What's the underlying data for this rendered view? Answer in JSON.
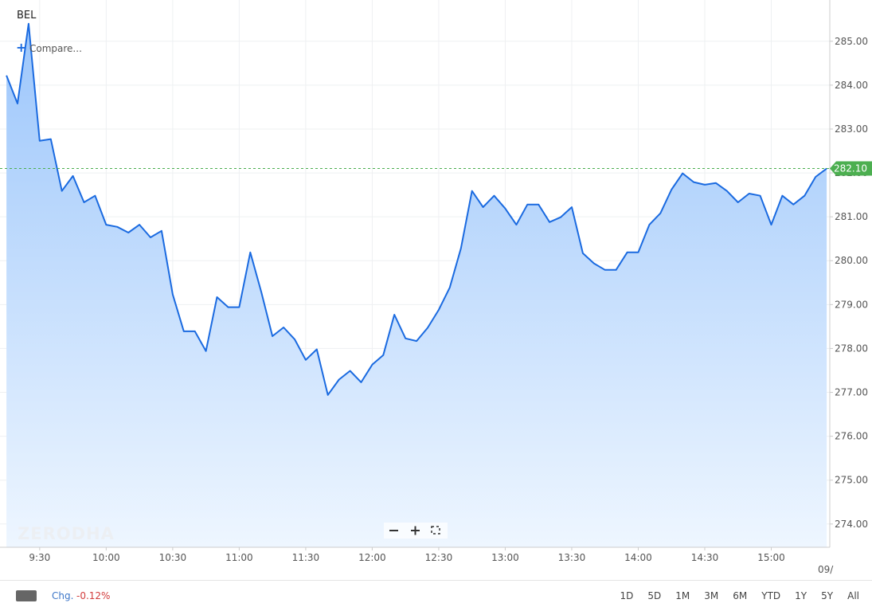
{
  "header": {
    "symbol": "BEL",
    "compare": "Compare..."
  },
  "chart_data": {
    "type": "area",
    "x": [
      555,
      560,
      565,
      570,
      575,
      580,
      585,
      590,
      595,
      600,
      605,
      610,
      615,
      620,
      625,
      630,
      635,
      640,
      645,
      650,
      655,
      660,
      665,
      670,
      675,
      680,
      685,
      690,
      695,
      700,
      705,
      710,
      715,
      720,
      725,
      730,
      735,
      740,
      745,
      750,
      755,
      760,
      765,
      770,
      775,
      780,
      785,
      790,
      795,
      800,
      805,
      810,
      815,
      820,
      825,
      830,
      835,
      840,
      845,
      850,
      855,
      860,
      865,
      870,
      875,
      880,
      885,
      890,
      895,
      900,
      905,
      910,
      915,
      920,
      925
    ],
    "values": [
      284.22,
      283.58,
      285.4,
      282.73,
      282.77,
      281.59,
      281.93,
      281.33,
      281.48,
      280.82,
      280.77,
      280.64,
      280.82,
      280.53,
      280.68,
      279.23,
      278.39,
      278.39,
      277.94,
      279.17,
      278.94,
      278.94,
      280.19,
      279.28,
      278.28,
      278.48,
      278.21,
      277.74,
      277.98,
      276.94,
      277.29,
      277.49,
      277.23,
      277.63,
      277.85,
      278.77,
      278.23,
      278.17,
      278.47,
      278.88,
      279.39,
      280.28,
      281.59,
      281.22,
      281.48,
      281.19,
      280.82,
      281.28,
      281.28,
      280.88,
      280.99,
      281.22,
      280.17,
      279.94,
      279.79,
      279.79,
      280.19,
      280.19,
      280.82,
      281.08,
      281.62,
      281.99,
      281.79,
      281.73,
      281.77,
      281.59,
      281.33,
      281.53,
      281.48,
      280.82,
      281.48,
      281.28,
      281.48,
      281.91,
      282.1
    ],
    "color": "#1a6ae0",
    "xlim": [
      552.1,
      926.4
    ],
    "ylim": [
      273.47,
      285.94
    ],
    "xticks": [
      {
        "value": 570,
        "label": "9:30"
      },
      {
        "value": 600,
        "label": "10:00"
      },
      {
        "value": 630,
        "label": "10:30"
      },
      {
        "value": 660,
        "label": "11:00"
      },
      {
        "value": 690,
        "label": "11:30"
      },
      {
        "value": 720,
        "label": "12:00"
      },
      {
        "value": 750,
        "label": "12:30"
      },
      {
        "value": 780,
        "label": "13:00"
      },
      {
        "value": 810,
        "label": "13:30"
      },
      {
        "value": 840,
        "label": "14:00"
      },
      {
        "value": 870,
        "label": "14:30"
      },
      {
        "value": 900,
        "label": "15:00"
      }
    ],
    "yticks": [
      {
        "value": 274,
        "label": "274.00"
      },
      {
        "value": 275,
        "label": "275.00"
      },
      {
        "value": 276,
        "label": "276.00"
      },
      {
        "value": 277,
        "label": "277.00"
      },
      {
        "value": 278,
        "label": "278.00"
      },
      {
        "value": 279,
        "label": "279.00"
      },
      {
        "value": 280,
        "label": "280.00"
      },
      {
        "value": 281,
        "label": "281.00"
      },
      {
        "value": 282,
        "label": "282.00"
      },
      {
        "value": 283,
        "label": "283.00"
      },
      {
        "value": 284,
        "label": "284.00"
      },
      {
        "value": 285,
        "label": "285.00"
      }
    ],
    "grid": true,
    "reference_line": {
      "value": 282.1,
      "label": "282.10",
      "color": "#4caf50"
    },
    "x_date_label": "09/",
    "watermark": "ZERODHA"
  },
  "footer": {
    "change_label": "Chg.",
    "change_value": "-0.12%",
    "ranges": [
      "1D",
      "5D",
      "1M",
      "3M",
      "6M",
      "YTD",
      "1Y",
      "5Y",
      "All"
    ]
  }
}
